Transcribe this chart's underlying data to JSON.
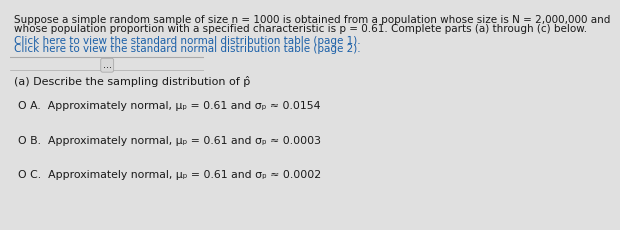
{
  "bg_color": "#e0e0e0",
  "content_bg": "#efefef",
  "header_text_line1": "Suppose a simple random sample of size n = 1000 is obtained from a population whose size is N = 2,000,000 and",
  "header_text_line2": "whose population proportion with a specified characteristic is p = 0.61. Complete parts (a) through (c) below.",
  "link1": "Click here to view the standard normal distribution table (page 1).",
  "link2": "Click here to view the standard normal distribution table (page 2).",
  "dots_label": "...",
  "question": "(a) Describe the sampling distribution of p̂",
  "option_A": "O A.  Approximately normal, μₚ = 0.61 and σₚ ≈ 0.0154",
  "option_B": "O B.  Approximately normal, μₚ = 0.61 and σₚ ≈ 0.0003",
  "option_C": "O C.  Approximately normal, μₚ = 0.61 and σₚ ≈ 0.0002",
  "header_fontsize": 7.5,
  "link_fontsize": 7.5,
  "question_fontsize": 8.0,
  "option_fontsize": 7.8,
  "link_color": "#1a5fa8",
  "text_color": "#1a1a1a",
  "line_color": "#aaaaaa",
  "dots_bg": "#d8d8d8",
  "dots_edge": "#aaaaaa"
}
